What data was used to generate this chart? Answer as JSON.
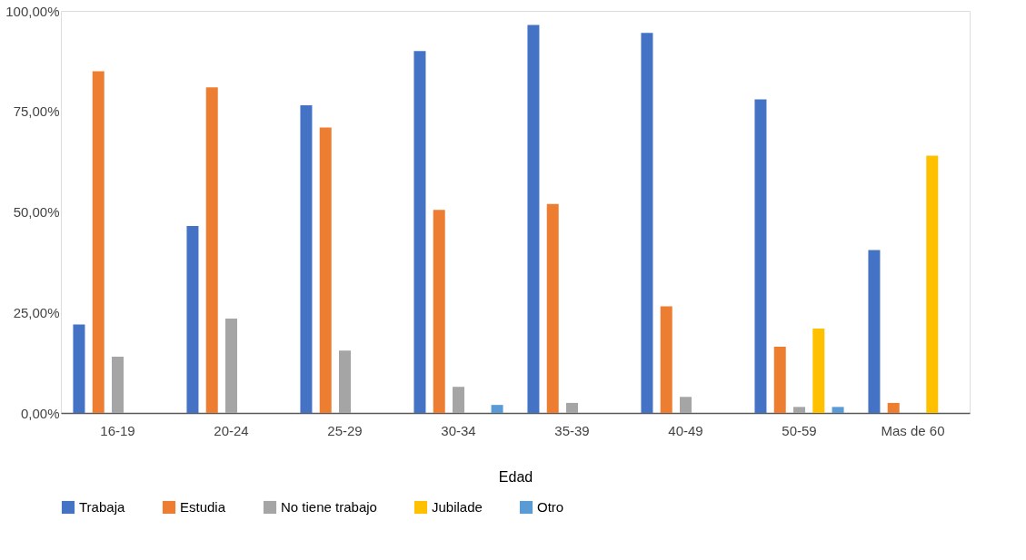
{
  "chart_data": {
    "type": "bar",
    "xlabel": "Edad",
    "categories": [
      "16-19",
      "20-24",
      "25-29",
      "30-34",
      "35-39",
      "40-49",
      "50-59",
      "Mas de 60"
    ],
    "series": [
      {
        "name": "Trabaja",
        "color": "#4472c4",
        "values": [
          22,
          46.5,
          76.5,
          90,
          96.5,
          94.5,
          78,
          40.5
        ]
      },
      {
        "name": "Estudia",
        "color": "#ed7d31",
        "values": [
          85,
          81,
          71,
          50.5,
          52,
          26.5,
          16.5,
          2.5
        ]
      },
      {
        "name": "No tiene trabajo",
        "color": "#a5a5a5",
        "values": [
          14,
          23.5,
          15.5,
          6.5,
          2.5,
          4,
          1.5,
          0
        ]
      },
      {
        "name": "Jubilade",
        "color": "#ffc000",
        "values": [
          0,
          0,
          0,
          0,
          0,
          0,
          21,
          64
        ]
      },
      {
        "name": "Otro",
        "color": "#5b9bd5",
        "values": [
          0,
          0,
          0,
          2,
          0,
          0,
          1.5,
          0
        ]
      }
    ],
    "ylim": [
      0,
      100
    ],
    "yticks": [
      {
        "value": 0,
        "label": "0,00%"
      },
      {
        "value": 25,
        "label": "25,00%"
      },
      {
        "value": 50,
        "label": "50,00%"
      },
      {
        "value": 75,
        "label": "75,00%"
      },
      {
        "value": 100,
        "label": "100,00%"
      }
    ],
    "grid": false,
    "legend": "bottom"
  }
}
